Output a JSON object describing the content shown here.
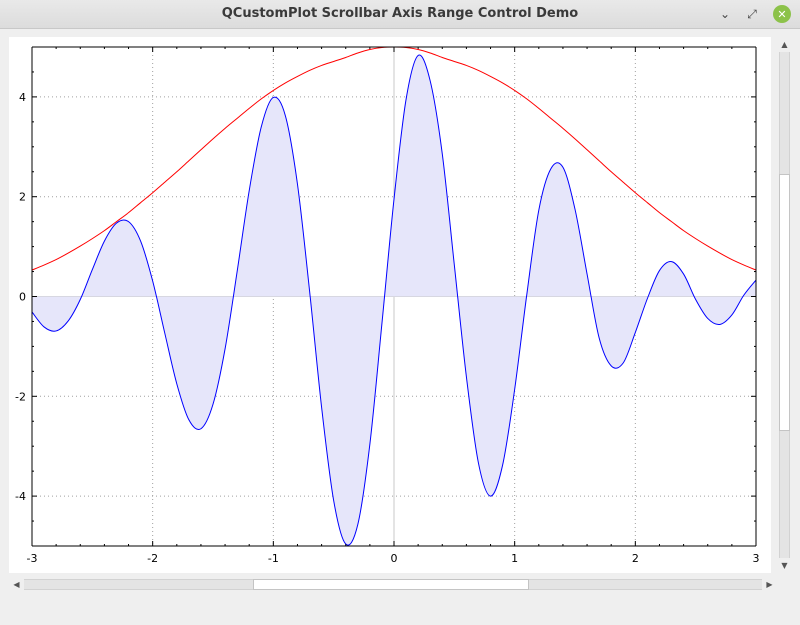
{
  "window": {
    "title": "QCustomPlot Scrollbar Axis Range Control Demo",
    "minimize_icon": "minimize-icon",
    "maximize_icon": "maximize-icon",
    "close_icon": "close-icon",
    "minimize_glyph": "⌄",
    "maximize_glyph": "⤢",
    "close_glyph": "✕"
  },
  "scrollbars": {
    "up_glyph": "▲",
    "down_glyph": "▼",
    "left_glyph": "◀",
    "right_glyph": "▶"
  },
  "chart_data": {
    "type": "line",
    "title": "",
    "xlabel": "",
    "ylabel": "",
    "xlim": [
      -3,
      3
    ],
    "ylim": [
      -5,
      5
    ],
    "grid": true,
    "x_ticks": [
      -3,
      -2,
      -1,
      0,
      1,
      2,
      3
    ],
    "y_ticks": [
      -4,
      -2,
      0,
      2,
      4
    ],
    "x_tick_labels": [
      "-3",
      "-2",
      "-1",
      "0",
      "1",
      "2",
      "3"
    ],
    "y_tick_labels": [
      "-4",
      "-2",
      "0",
      "2",
      "4"
    ],
    "series": [
      {
        "color": "#0000ff",
        "fill": "#e6e6fa",
        "x": [
          -3.0,
          -2.9,
          -2.8,
          -2.7,
          -2.6,
          -2.5,
          -2.4,
          -2.3,
          -2.2,
          -2.1,
          -2.0,
          -1.9,
          -1.8,
          -1.7,
          -1.6,
          -1.5,
          -1.4,
          -1.3,
          -1.2,
          -1.1,
          -1.0,
          -0.9,
          -0.8,
          -0.7,
          -0.6,
          -0.5,
          -0.4,
          -0.3,
          -0.2,
          -0.1,
          0.0,
          0.1,
          0.2,
          0.3,
          0.4,
          0.5,
          0.6,
          0.7,
          0.8,
          0.9,
          1.0,
          1.1,
          1.2,
          1.3,
          1.4,
          1.5,
          1.6,
          1.7,
          1.8,
          1.9,
          2.0,
          2.1,
          2.2,
          2.3,
          2.4,
          2.5,
          2.6,
          2.7,
          2.8,
          2.9,
          3.0
        ],
        "y": [
          -0.31,
          -0.61,
          -0.69,
          -0.49,
          -0.06,
          0.54,
          1.11,
          1.47,
          1.5,
          1.11,
          0.31,
          -0.73,
          -1.75,
          -2.47,
          -2.65,
          -2.16,
          -1.05,
          0.5,
          2.12,
          3.4,
          3.99,
          3.62,
          2.25,
          0.12,
          -2.22,
          -4.09,
          -4.96,
          -4.57,
          -2.96,
          -0.54,
          1.95,
          3.95,
          4.83,
          4.32,
          2.86,
          0.63,
          -1.61,
          -3.34,
          -4.0,
          -3.38,
          -1.86,
          0.03,
          1.73,
          2.56,
          2.59,
          1.75,
          0.45,
          -0.83,
          -1.39,
          -1.33,
          -0.72,
          -0.04,
          0.52,
          0.7,
          0.45,
          -0.06,
          -0.44,
          -0.56,
          -0.37,
          0.03,
          0.33
        ]
      },
      {
        "color": "#ff0000",
        "x": [
          -3.0,
          -2.9,
          -2.8,
          -2.7,
          -2.6,
          -2.5,
          -2.4,
          -2.3,
          -2.2,
          -2.1,
          -2.0,
          -1.9,
          -1.8,
          -1.7,
          -1.6,
          -1.5,
          -1.4,
          -1.3,
          -1.2,
          -1.1,
          -1.0,
          -0.9,
          -0.8,
          -0.7,
          -0.6,
          -0.5,
          -0.4,
          -0.3,
          -0.2,
          -0.1,
          0.0,
          0.1,
          0.2,
          0.3,
          0.4,
          0.5,
          0.6,
          0.7,
          0.8,
          0.9,
          1.0,
          1.1,
          1.2,
          1.3,
          1.4,
          1.5,
          1.6,
          1.7,
          1.8,
          1.9,
          2.0,
          2.1,
          2.2,
          2.3,
          2.4,
          2.5,
          2.6,
          2.7,
          2.8,
          2.9,
          3.0
        ],
        "y": [
          0.53,
          0.63,
          0.74,
          0.87,
          1.01,
          1.16,
          1.32,
          1.5,
          1.68,
          1.88,
          2.08,
          2.29,
          2.5,
          2.72,
          2.94,
          3.16,
          3.37,
          3.57,
          3.77,
          3.96,
          4.13,
          4.28,
          4.41,
          4.53,
          4.63,
          4.71,
          4.79,
          4.88,
          4.95,
          4.99,
          5.0,
          4.99,
          4.95,
          4.88,
          4.79,
          4.71,
          4.63,
          4.53,
          4.41,
          4.28,
          4.13,
          3.96,
          3.77,
          3.57,
          3.37,
          3.16,
          2.94,
          2.72,
          2.5,
          2.29,
          2.08,
          1.88,
          1.68,
          1.5,
          1.32,
          1.16,
          1.01,
          0.87,
          0.74,
          0.63,
          0.53
        ]
      }
    ]
  }
}
